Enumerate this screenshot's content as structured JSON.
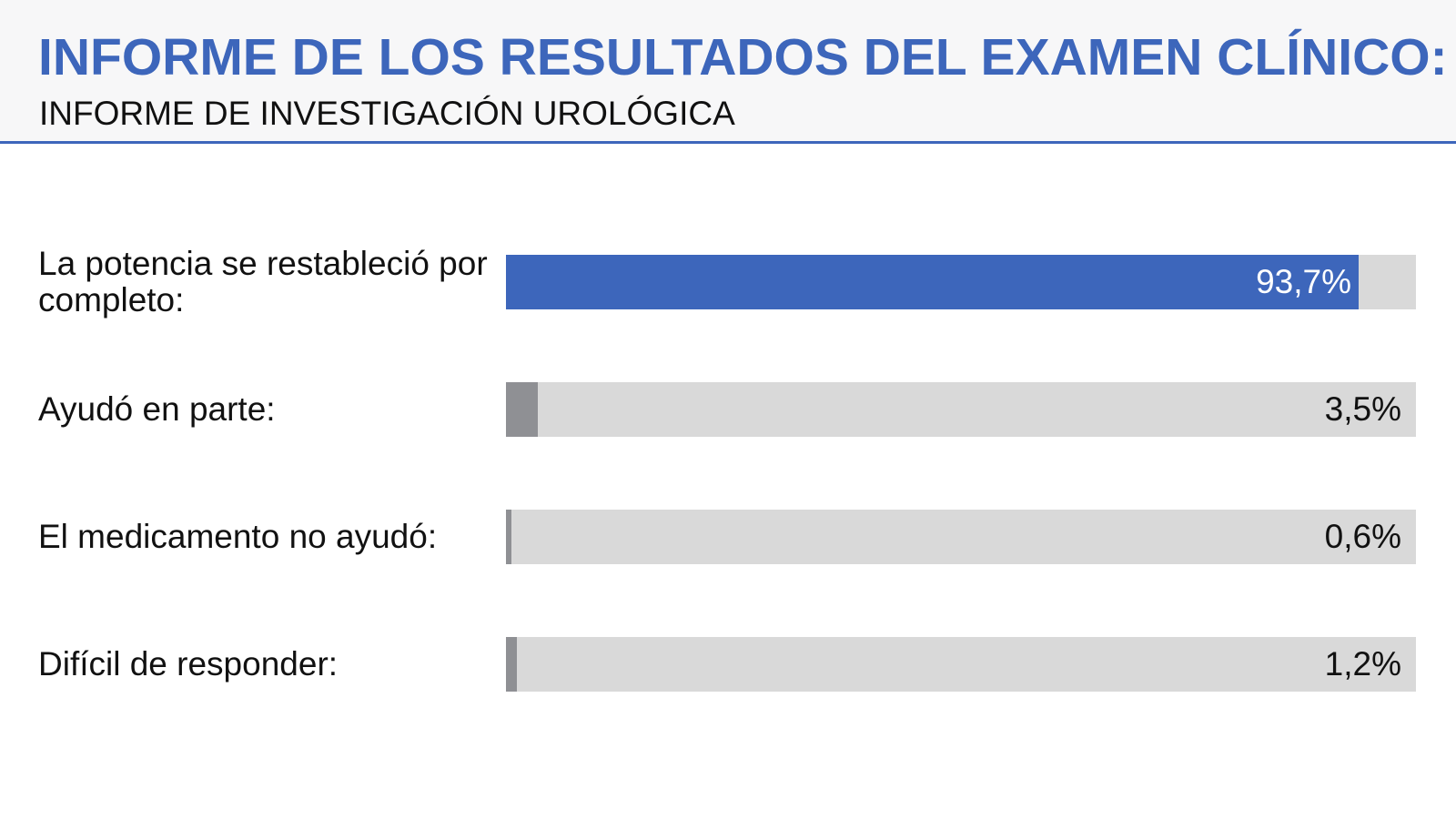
{
  "header": {
    "title": "INFORME DE LOS RESULTADOS DEL EXAMEN CLÍNICO:",
    "subtitle": "INFORME DE INVESTIGACIÓN UROLÓGICA"
  },
  "colors": {
    "primary": "#3d66bb",
    "secondary": "#8f9094",
    "track": "#d9d9d9"
  },
  "chart_data": {
    "type": "bar",
    "orientation": "horizontal",
    "title": "INFORME DE LOS RESULTADOS DEL EXAMEN CLÍNICO:",
    "subtitle": "INFORME DE INVESTIGACIÓN UROLÓGICA",
    "xlim": [
      0,
      100
    ],
    "grid": false,
    "legend": "none",
    "categories": [
      "La potencia se restableció por completo:",
      "Ayudó en parte:",
      "El medicamento no ayudó:",
      "Difícil de responder:"
    ],
    "values": [
      93.7,
      3.5,
      0.6,
      1.2
    ],
    "value_labels": [
      "93,7%",
      "3,5%",
      "0,6%",
      "1,2%"
    ]
  }
}
